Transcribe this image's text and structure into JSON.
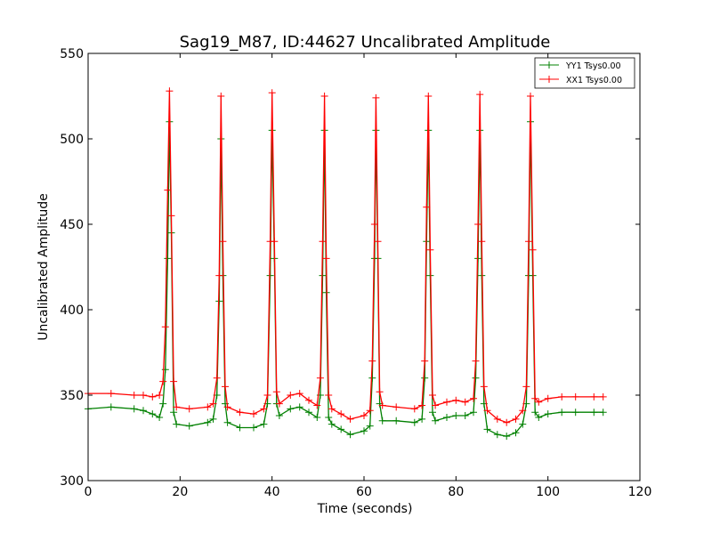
{
  "chart_data": {
    "type": "line",
    "title": "Sag19_M87, ID:44627 Uncalibrated Amplitude",
    "xlabel": "Time (seconds)",
    "ylabel": "Uncalibrated Amplitude",
    "xlim": [
      0,
      120
    ],
    "ylim": [
      300,
      550
    ],
    "xticks": [
      0,
      20,
      40,
      60,
      80,
      100,
      120
    ],
    "yticks": [
      300,
      350,
      400,
      450,
      500,
      550
    ],
    "grid": false,
    "legend_position": "top-right",
    "markers": "+",
    "series": [
      {
        "name": "YY1 Tsys0.00",
        "color": "#008000",
        "points": [
          [
            0,
            342
          ],
          [
            5,
            343
          ],
          [
            10,
            342
          ],
          [
            12,
            341
          ],
          [
            14,
            339
          ],
          [
            15.5,
            337
          ],
          [
            16.3,
            345
          ],
          [
            16.8,
            365
          ],
          [
            17.3,
            430
          ],
          [
            17.7,
            510
          ],
          [
            18.1,
            445
          ],
          [
            18.6,
            340
          ],
          [
            19.2,
            333
          ],
          [
            22,
            332
          ],
          [
            26,
            334
          ],
          [
            27.2,
            336
          ],
          [
            28,
            350
          ],
          [
            28.5,
            405
          ],
          [
            28.9,
            500
          ],
          [
            29.3,
            420
          ],
          [
            29.8,
            345
          ],
          [
            30.3,
            334
          ],
          [
            33,
            331
          ],
          [
            36,
            331
          ],
          [
            38.2,
            333
          ],
          [
            39,
            345
          ],
          [
            39.6,
            420
          ],
          [
            40,
            505
          ],
          [
            40.5,
            430
          ],
          [
            41,
            345
          ],
          [
            41.6,
            338
          ],
          [
            44,
            342
          ],
          [
            46,
            343
          ],
          [
            48,
            340
          ],
          [
            49.8,
            337
          ],
          [
            50.5,
            350
          ],
          [
            51,
            420
          ],
          [
            51.4,
            505
          ],
          [
            51.8,
            410
          ],
          [
            52.3,
            337
          ],
          [
            53,
            333
          ],
          [
            55,
            330
          ],
          [
            57,
            327
          ],
          [
            60,
            329
          ],
          [
            61.3,
            332
          ],
          [
            61.8,
            360
          ],
          [
            62.3,
            430
          ],
          [
            62.6,
            505
          ],
          [
            63,
            430
          ],
          [
            63.4,
            345
          ],
          [
            64,
            335
          ],
          [
            67,
            335
          ],
          [
            71,
            334
          ],
          [
            72.6,
            336
          ],
          [
            73.2,
            360
          ],
          [
            73.6,
            440
          ],
          [
            74,
            505
          ],
          [
            74.4,
            420
          ],
          [
            74.9,
            340
          ],
          [
            75.5,
            335
          ],
          [
            78,
            337
          ],
          [
            80,
            338
          ],
          [
            82,
            338
          ],
          [
            83.8,
            340
          ],
          [
            84.3,
            360
          ],
          [
            84.8,
            430
          ],
          [
            85.2,
            505
          ],
          [
            85.6,
            420
          ],
          [
            86.1,
            345
          ],
          [
            86.8,
            330
          ],
          [
            89,
            327
          ],
          [
            91,
            326
          ],
          [
            93,
            328
          ],
          [
            94.5,
            333
          ],
          [
            95.3,
            345
          ],
          [
            95.8,
            420
          ],
          [
            96.2,
            510
          ],
          [
            96.7,
            420
          ],
          [
            97.2,
            340
          ],
          [
            98,
            337
          ],
          [
            100,
            339
          ],
          [
            103,
            340
          ],
          [
            106,
            340
          ],
          [
            110,
            340
          ],
          [
            112,
            340
          ]
        ]
      },
      {
        "name": "XX1 Tsys0.00",
        "color": "#ff0000",
        "points": [
          [
            0,
            351
          ],
          [
            5,
            351
          ],
          [
            10,
            350
          ],
          [
            12,
            350
          ],
          [
            14,
            349
          ],
          [
            15.5,
            350
          ],
          [
            16.3,
            358
          ],
          [
            16.8,
            390
          ],
          [
            17.3,
            470
          ],
          [
            17.7,
            528
          ],
          [
            18.1,
            455
          ],
          [
            18.6,
            358
          ],
          [
            19.2,
            343
          ],
          [
            22,
            342
          ],
          [
            26,
            343
          ],
          [
            27.2,
            345
          ],
          [
            28,
            360
          ],
          [
            28.5,
            420
          ],
          [
            28.9,
            525
          ],
          [
            29.3,
            440
          ],
          [
            29.8,
            355
          ],
          [
            30.3,
            343
          ],
          [
            33,
            340
          ],
          [
            36,
            339
          ],
          [
            38.2,
            342
          ],
          [
            39,
            350
          ],
          [
            39.6,
            440
          ],
          [
            40,
            527
          ],
          [
            40.5,
            440
          ],
          [
            41,
            352
          ],
          [
            41.6,
            345
          ],
          [
            44,
            350
          ],
          [
            46,
            351
          ],
          [
            48,
            347
          ],
          [
            49.8,
            344
          ],
          [
            50.5,
            360
          ],
          [
            51,
            440
          ],
          [
            51.4,
            525
          ],
          [
            51.8,
            430
          ],
          [
            52.3,
            350
          ],
          [
            53,
            342
          ],
          [
            55,
            339
          ],
          [
            57,
            336
          ],
          [
            60,
            338
          ],
          [
            61.3,
            341
          ],
          [
            61.8,
            370
          ],
          [
            62.3,
            450
          ],
          [
            62.6,
            524
          ],
          [
            63,
            440
          ],
          [
            63.4,
            352
          ],
          [
            64,
            344
          ],
          [
            67,
            343
          ],
          [
            71,
            342
          ],
          [
            72.6,
            344
          ],
          [
            73.2,
            370
          ],
          [
            73.6,
            460
          ],
          [
            74,
            525
          ],
          [
            74.4,
            435
          ],
          [
            74.9,
            350
          ],
          [
            75.5,
            344
          ],
          [
            78,
            346
          ],
          [
            80,
            347
          ],
          [
            82,
            346
          ],
          [
            83.8,
            348
          ],
          [
            84.3,
            370
          ],
          [
            84.8,
            450
          ],
          [
            85.2,
            526
          ],
          [
            85.6,
            440
          ],
          [
            86.1,
            355
          ],
          [
            86.8,
            341
          ],
          [
            89,
            336
          ],
          [
            91,
            334
          ],
          [
            93,
            336
          ],
          [
            94.5,
            341
          ],
          [
            95.3,
            355
          ],
          [
            95.8,
            440
          ],
          [
            96.2,
            525
          ],
          [
            96.7,
            435
          ],
          [
            97.2,
            348
          ],
          [
            98,
            346
          ],
          [
            100,
            348
          ],
          [
            103,
            349
          ],
          [
            106,
            349
          ],
          [
            110,
            349
          ],
          [
            112,
            349
          ]
        ]
      }
    ]
  }
}
